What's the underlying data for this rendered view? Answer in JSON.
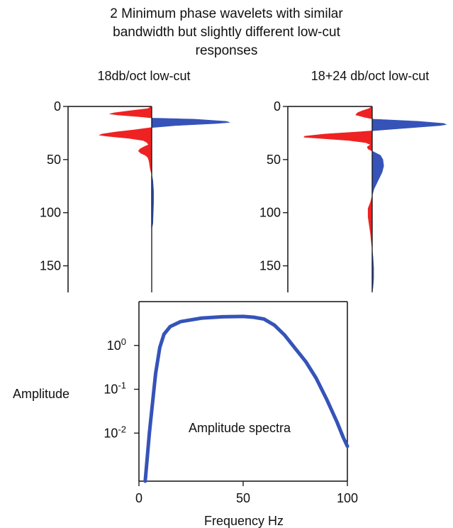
{
  "figure": {
    "title_lines": [
      "2  Minimum phase wavelets with similar",
      "bandwidth but slightly different low-cut",
      "responses"
    ]
  },
  "chart_data": [
    {
      "type": "area",
      "title": "18db/oct low-cut",
      "y_axis": {
        "range": [
          0,
          175
        ],
        "ticks": [
          0,
          50,
          100,
          150
        ],
        "tick_labels": [
          "0",
          "50",
          "100",
          "150"
        ],
        "inverted": true
      },
      "colors": {
        "negative": "#ee2222",
        "positive": "#3553b8",
        "baseline": "#111111"
      },
      "series": [
        {
          "type": "wavelet",
          "samples": [
            [
              0,
              0.0
            ],
            [
              2,
              -0.05
            ],
            [
              4,
              -0.28
            ],
            [
              6,
              -0.48
            ],
            [
              7,
              -0.54
            ],
            [
              8,
              -0.44
            ],
            [
              10,
              -0.1
            ],
            [
              11,
              0.02
            ],
            [
              12,
              0.55
            ],
            [
              14,
              0.95
            ],
            [
              15,
              1.0
            ],
            [
              16,
              0.84
            ],
            [
              18,
              0.3
            ],
            [
              20,
              -0.02
            ],
            [
              22,
              -0.22
            ],
            [
              24,
              -0.46
            ],
            [
              26,
              -0.64
            ],
            [
              27,
              -0.67
            ],
            [
              28,
              -0.57
            ],
            [
              30,
              -0.29
            ],
            [
              32,
              -0.11
            ],
            [
              34,
              -0.06
            ],
            [
              36,
              -0.04
            ],
            [
              38,
              -0.1
            ],
            [
              40,
              -0.15
            ],
            [
              42,
              -0.17
            ],
            [
              44,
              -0.14
            ],
            [
              46,
              -0.08
            ],
            [
              48,
              -0.05
            ],
            [
              50,
              -0.04
            ],
            [
              53,
              -0.03
            ],
            [
              56,
              -0.025
            ],
            [
              60,
              -0.015
            ],
            [
              64,
              0.0
            ],
            [
              70,
              0.015
            ],
            [
              80,
              0.025
            ],
            [
              90,
              0.025
            ],
            [
              100,
              0.02
            ],
            [
              110,
              0.015
            ],
            [
              115,
              0.0
            ],
            [
              175,
              0.0
            ]
          ]
        }
      ]
    },
    {
      "type": "area",
      "title": "18+24 db/oct low-cut",
      "y_axis": {
        "range": [
          0,
          175
        ],
        "ticks": [
          0,
          50,
          100,
          150
        ],
        "tick_labels": [
          "0",
          "50",
          "100",
          "150"
        ],
        "inverted": true
      },
      "colors": {
        "negative": "#ee2222",
        "positive": "#3553b8",
        "baseline": "#111111"
      },
      "series": [
        {
          "type": "wavelet",
          "samples": [
            [
              0,
              0.0
            ],
            [
              2,
              -0.04
            ],
            [
              4,
              -0.12
            ],
            [
              6,
              -0.18
            ],
            [
              8,
              -0.2
            ],
            [
              10,
              -0.1
            ],
            [
              12,
              0.02
            ],
            [
              14,
              0.56
            ],
            [
              16,
              0.87
            ],
            [
              17,
              0.9
            ],
            [
              18,
              0.82
            ],
            [
              20,
              0.48
            ],
            [
              22,
              0.14
            ],
            [
              24,
              -0.18
            ],
            [
              26,
              -0.58
            ],
            [
              28,
              -0.82
            ],
            [
              29,
              -0.83
            ],
            [
              30,
              -0.64
            ],
            [
              32,
              -0.28
            ],
            [
              34,
              -0.08
            ],
            [
              36,
              -0.02
            ],
            [
              38,
              -0.06
            ],
            [
              40,
              -0.05
            ],
            [
              42,
              0.0
            ],
            [
              44,
              0.05
            ],
            [
              46,
              0.1
            ],
            [
              50,
              0.13
            ],
            [
              56,
              0.14
            ],
            [
              62,
              0.12
            ],
            [
              70,
              0.07
            ],
            [
              78,
              0.02
            ],
            [
              84,
              0.0
            ],
            [
              90,
              -0.02
            ],
            [
              96,
              -0.05
            ],
            [
              104,
              -0.05
            ],
            [
              112,
              -0.035
            ],
            [
              120,
              -0.02
            ],
            [
              128,
              -0.01
            ],
            [
              134,
              0.0
            ],
            [
              142,
              0.01
            ],
            [
              152,
              0.018
            ],
            [
              162,
              0.018
            ],
            [
              170,
              0.01
            ],
            [
              175,
              0.0
            ]
          ]
        }
      ]
    },
    {
      "type": "line",
      "title": "",
      "annotation": "Amplitude spectra",
      "xlabel": "Frequency Hz",
      "ylabel": "Amplitude",
      "xlim": [
        0,
        100
      ],
      "ylim": [
        0.0008,
        10
      ],
      "y_scale": "log",
      "x_ticks": [
        0,
        50,
        100
      ],
      "x_tick_labels": [
        "0",
        "50",
        "100"
      ],
      "y_ticks": [
        0.01,
        0.1,
        1
      ],
      "y_tick_labels": [
        {
          "base": "10",
          "exp": "-2"
        },
        {
          "base": "10",
          "exp": "-1"
        },
        {
          "base": "10",
          "exp": "0"
        }
      ],
      "series": [
        {
          "color": "#3553b8",
          "points": [
            [
              3,
              0.0008
            ],
            [
              5,
              0.01
            ],
            [
              8,
              0.23
            ],
            [
              10,
              0.9
            ],
            [
              12,
              1.8
            ],
            [
              15,
              2.7
            ],
            [
              20,
              3.5
            ],
            [
              30,
              4.2
            ],
            [
              40,
              4.5
            ],
            [
              50,
              4.6
            ],
            [
              55,
              4.4
            ],
            [
              60,
              4.0
            ],
            [
              65,
              2.9
            ],
            [
              70,
              1.7
            ],
            [
              75,
              0.85
            ],
            [
              80,
              0.43
            ],
            [
              85,
              0.18
            ],
            [
              90,
              0.06
            ],
            [
              95,
              0.018
            ],
            [
              98,
              0.008
            ],
            [
              100,
              0.005
            ]
          ]
        }
      ]
    }
  ]
}
